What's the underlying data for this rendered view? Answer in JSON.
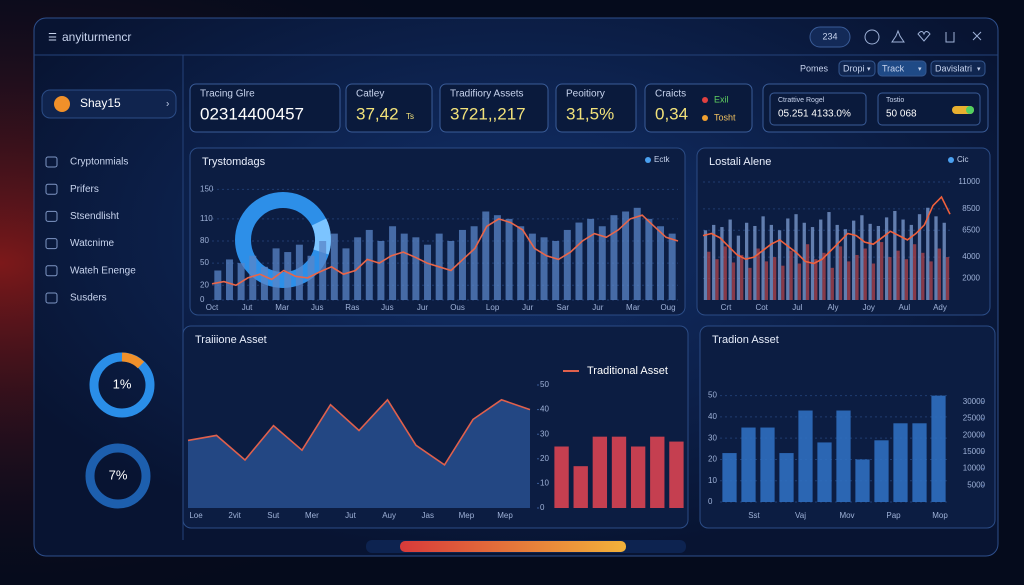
{
  "header": {
    "title": "anyiturmencr",
    "badge": "234"
  },
  "sidebar": {
    "user": "Shay15",
    "menu": [
      "Cryptonmials",
      "Prifers",
      "Stsendlisht",
      "Watcnime",
      "Wateh Enenge",
      "Susders"
    ],
    "donuts": [
      "1%",
      "7%"
    ]
  },
  "toolbar": [
    "Pomes",
    "Dropi",
    "Track",
    "Davislatri"
  ],
  "stats": [
    {
      "label": "Tracing Glre",
      "value": "02314400457"
    },
    {
      "label": "Catley",
      "value": "37,42",
      "unit": "Ts"
    },
    {
      "label": "Tradifiory Assets",
      "value": "3721,,217"
    },
    {
      "label": "Peoitiory",
      "value": "31,5%"
    },
    {
      "label": "Craicts",
      "value": "0,34",
      "legend": [
        "Exil",
        "Tosht"
      ]
    },
    {
      "label": "Ctrattive Rogel",
      "value": "05.251 4133.0%"
    },
    {
      "label": "Tostio",
      "value": "50 068"
    }
  ],
  "charts": [
    {
      "title": "Trystomdags",
      "legend": "Ectk",
      "ylim": [
        0,
        160
      ],
      "yticks": [
        0,
        20,
        50,
        80,
        110,
        150
      ],
      "xlabels": [
        "Oct",
        "Jut",
        "Mar",
        "Jus",
        "Ras",
        "Jus",
        "Jur",
        "Ous",
        "Lop",
        "Jur",
        "Sar",
        "Jur",
        "Mar",
        "Oug"
      ],
      "series": [
        {
          "kind": "bar",
          "color": "#5a86c8",
          "values": [
            40,
            55,
            50,
            60,
            45,
            70,
            65,
            75,
            60,
            80,
            90,
            70,
            85,
            95,
            80,
            100,
            90,
            85,
            75,
            90,
            80,
            95,
            100,
            120,
            115,
            110,
            100,
            90,
            85,
            80,
            95,
            105,
            110,
            100,
            115,
            120,
            125,
            110,
            100,
            90
          ]
        },
        {
          "kind": "line",
          "color": "#e8664a",
          "values": [
            22,
            25,
            20,
            30,
            35,
            28,
            40,
            32,
            30,
            38,
            45,
            35,
            40,
            55,
            50,
            60,
            65,
            58,
            50,
            45,
            40,
            55,
            70,
            100,
            110,
            105,
            95,
            70,
            60,
            55,
            65,
            80,
            90,
            85,
            95,
            110,
            115,
            100,
            85,
            80
          ]
        }
      ]
    },
    {
      "title": "Lostali Alene",
      "legend": "Cic",
      "ylim": [
        0,
        11000
      ],
      "yticks": [
        2000,
        4000,
        6500,
        8500,
        11000
      ],
      "xlabels": [
        "Crt",
        "Cot",
        "Jul",
        "Aly",
        "Joy",
        "Aul",
        "Ady"
      ],
      "series": [
        {
          "kind": "bar",
          "color": "#7f9fd4",
          "values": [
            6500,
            7000,
            6800,
            7500,
            6000,
            7200,
            6900,
            7800,
            7000,
            6500,
            7600,
            8000,
            7200,
            6800,
            7500,
            8200,
            7000,
            6600,
            7400,
            7900,
            7100,
            6900,
            7700,
            8300,
            7500,
            7000,
            8000,
            8600,
            7800,
            7200
          ]
        },
        {
          "kind": "bar",
          "color": "#b0444c",
          "values": [
            4500,
            3800,
            5000,
            3500,
            4200,
            3000,
            4800,
            3600,
            4000,
            3200,
            4600,
            3400,
            5200,
            3800,
            4400,
            3000,
            5000,
            3600,
            4200,
            4800,
            3400,
            5400,
            4000,
            4600,
            3800,
            5200,
            4400,
            3600,
            4800,
            4000
          ]
        },
        {
          "kind": "line",
          "color": "#f0603c",
          "values": [
            6000,
            6200,
            5800,
            5000,
            4200,
            3800,
            4000,
            4600,
            5200,
            5600,
            5000,
            4400,
            3600,
            3400,
            3800,
            4600,
            5400,
            6200,
            6000,
            5400,
            5200,
            5800,
            6400,
            6000,
            5600,
            6200,
            7000,
            8800,
            9600,
            8000
          ]
        }
      ]
    },
    {
      "title": "Traiiione Asset",
      "legend": "Traditional Asset",
      "ylim": [
        0,
        100
      ],
      "y2lim": [
        0,
        50
      ],
      "y2ticks": [
        0,
        10,
        20,
        30,
        40,
        50
      ],
      "xlabels": [
        "Loe",
        "2vit",
        "Sut",
        "Mer",
        "Jut",
        "Auy",
        "Jas",
        "Mep",
        "Mep"
      ],
      "series": [
        {
          "kind": "area",
          "color": "#e0604c",
          "values": [
            55,
            59,
            39,
            67,
            47,
            84,
            63,
            88,
            51,
            35,
            72,
            88,
            80
          ]
        },
        {
          "kind": "bar",
          "axis": "y2",
          "color": "#d94452",
          "values": [
            25,
            17,
            29,
            29,
            25,
            29,
            27
          ]
        }
      ]
    },
    {
      "title": "Tradion Asset",
      "ylim": [
        0,
        55
      ],
      "yticks": [
        0,
        10,
        20,
        30,
        40,
        50
      ],
      "y2lim": [
        0,
        35000
      ],
      "y2ticks": [
        5000,
        10000,
        15000,
        20000,
        25000,
        30000
      ],
      "xlabels": [
        "Sst",
        "Vaj",
        "Mov",
        "Pap",
        "Mop"
      ],
      "series": [
        {
          "kind": "bar",
          "color": "#2f6fc0",
          "values": [
            23,
            35,
            35,
            23,
            43,
            28,
            43,
            20,
            29,
            37,
            37,
            50
          ]
        }
      ]
    }
  ]
}
